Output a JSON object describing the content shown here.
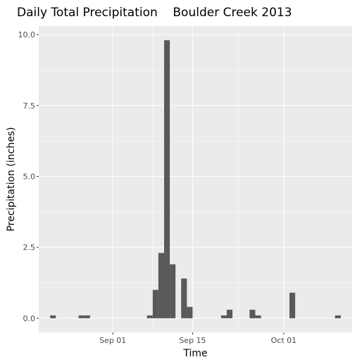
{
  "chart_data": {
    "type": "bar",
    "title": "Daily Total Precipitation    Boulder Creek 2013",
    "xlabel": "Time",
    "ylabel": "Precipitation (inches)",
    "x_ticks": [
      "Sep 01",
      "Sep 15",
      "Oct 01"
    ],
    "y_ticks": [
      "0.0",
      "2.5",
      "5.0",
      "7.5",
      "10.0"
    ],
    "ylim": [
      -0.5,
      10.3
    ],
    "xlim": [
      "2013-08-19",
      "2013-10-13"
    ],
    "grid": true,
    "bar_color": "#595959",
    "panel_color": "#ebebeb",
    "x": [
      "2013-08-21",
      "2013-08-26",
      "2013-08-27",
      "2013-09-07",
      "2013-09-08",
      "2013-09-09",
      "2013-09-10",
      "2013-09-11",
      "2013-09-12",
      "2013-09-13",
      "2013-09-14",
      "2013-09-15",
      "2013-09-20",
      "2013-09-21",
      "2013-09-25",
      "2013-09-26",
      "2013-10-02",
      "2013-10-10"
    ],
    "values": [
      0.1,
      0.1,
      0.1,
      0.1,
      1.0,
      2.3,
      9.8,
      1.9,
      0.0,
      1.4,
      0.4,
      0.0,
      0.1,
      0.3,
      0.3,
      0.1,
      0.9,
      0.1
    ]
  }
}
